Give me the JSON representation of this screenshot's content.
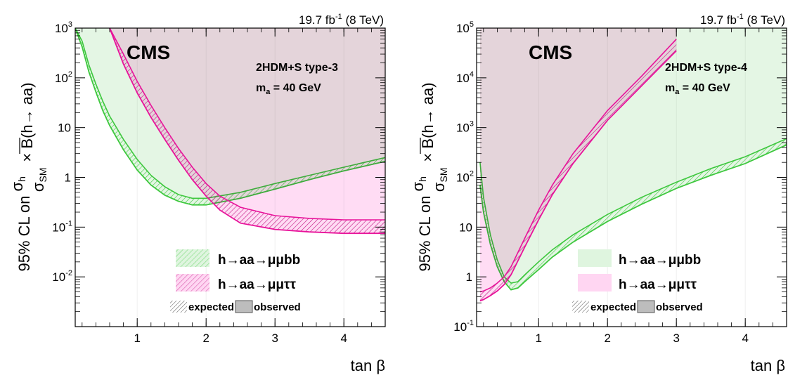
{
  "colors": {
    "green_fill": "#dff5df",
    "green_line": "#3ec83e",
    "pink_fill": "#ffd6f2",
    "pink_line": "#e8139a",
    "overlap_fill": "#e3d7d7",
    "frame": "#000000"
  },
  "legend": {
    "bb_label": "h→aa→μμbb",
    "tautau_label": "h→aa→μμττ",
    "expected_label": "expected",
    "observed_label": "observed"
  },
  "chart_data": [
    {
      "type": "area",
      "lumi_text": "19.7 fb",
      "lumi_sup": "-1",
      "lumi_energy": " (8 TeV)",
      "cms_label": "CMS",
      "model_label": "2HDM+S type-3",
      "mass_label_main": "m",
      "mass_label_sub": "a",
      "mass_label_value": " = 40 GeV",
      "ylabel_sigma_h": "σ",
      "ylabel_sigma_h_sub": "h",
      "ylabel_sigma_sm": "σ",
      "ylabel_sigma_sm_sub": "SM",
      "ylabel_prefix": "95% CL on",
      "ylabel_suffix": "× B(h→ aa)",
      "xlabel": "tan β",
      "xlim": [
        0.1,
        4.6
      ],
      "ylim": [
        0.001,
        1000
      ],
      "yscale": "log",
      "x_ticks": [
        1,
        2,
        3,
        4
      ],
      "y_ticks": [
        {
          "value": 0.01,
          "base": "10",
          "exp": "-2"
        },
        {
          "value": 0.1,
          "base": "10",
          "exp": "-1"
        },
        {
          "value": 1,
          "base": "1",
          "exp": ""
        },
        {
          "value": 10,
          "base": "10",
          "exp": ""
        },
        {
          "value": 100,
          "base": "10",
          "exp": "2"
        },
        {
          "value": 1000,
          "base": "10",
          "exp": "3"
        }
      ],
      "series": [
        {
          "name": "h→aa→μμbb",
          "x": [
            0.1,
            0.2,
            0.3,
            0.4,
            0.5,
            0.6,
            0.8,
            1.0,
            1.2,
            1.4,
            1.6,
            1.8,
            2.0,
            2.5,
            3.0,
            3.5,
            4.0,
            4.6
          ],
          "expected": [
            1000,
            550,
            180,
            75,
            34,
            17,
            5.8,
            2.3,
            1.1,
            0.65,
            0.45,
            0.38,
            0.38,
            0.5,
            0.75,
            1.1,
            1.6,
            2.5
          ],
          "observed": [
            1000,
            420,
            130,
            52,
            22,
            11,
            3.6,
            1.4,
            0.7,
            0.44,
            0.33,
            0.28,
            0.28,
            0.38,
            0.58,
            0.9,
            1.35,
            2.1
          ]
        },
        {
          "name": "h→aa→μμττ",
          "x": [
            0.6,
            0.8,
            1.0,
            1.2,
            1.4,
            1.6,
            1.8,
            2.0,
            2.2,
            2.5,
            3.0,
            3.5,
            4.0,
            4.6
          ],
          "expected": [
            1000,
            300,
            85,
            28,
            10,
            3.8,
            1.6,
            0.75,
            0.42,
            0.25,
            0.17,
            0.15,
            0.14,
            0.14
          ],
          "observed": [
            1000,
            190,
            50,
            16,
            5.8,
            2.2,
            0.9,
            0.42,
            0.22,
            0.12,
            0.09,
            0.08,
            0.075,
            0.075
          ]
        }
      ]
    },
    {
      "type": "area",
      "lumi_text": "19.7 fb",
      "lumi_sup": "-1",
      "lumi_energy": " (8 TeV)",
      "cms_label": "CMS",
      "model_label": "2HDM+S type-4",
      "mass_label_main": "m",
      "mass_label_sub": "a",
      "mass_label_value": " = 40 GeV",
      "ylabel_sigma_h": "σ",
      "ylabel_sigma_h_sub": "h",
      "ylabel_sigma_sm": "σ",
      "ylabel_sigma_sm_sub": "SM",
      "ylabel_prefix": "95% CL on",
      "ylabel_suffix": "× B(h→ aa)",
      "xlabel": "tan β",
      "xlim": [
        0.1,
        4.6
      ],
      "ylim": [
        0.1,
        100000
      ],
      "yscale": "log",
      "x_ticks": [
        1,
        2,
        3,
        4
      ],
      "y_ticks": [
        {
          "value": 0.1,
          "base": "10",
          "exp": "-1"
        },
        {
          "value": 1,
          "base": "1",
          "exp": ""
        },
        {
          "value": 10,
          "base": "10",
          "exp": ""
        },
        {
          "value": 100,
          "base": "10",
          "exp": "2"
        },
        {
          "value": 1000,
          "base": "10",
          "exp": "3"
        },
        {
          "value": 10000,
          "base": "10",
          "exp": "4"
        },
        {
          "value": 100000,
          "base": "10",
          "exp": "5"
        }
      ],
      "series": [
        {
          "name": "h→aa→μμbb",
          "x": [
            0.15,
            0.2,
            0.3,
            0.4,
            0.5,
            0.6,
            0.7,
            0.8,
            1.0,
            1.2,
            1.5,
            2.0,
            2.5,
            3.0,
            3.5,
            4.0,
            4.6
          ],
          "expected": [
            200,
            40,
            7,
            2.2,
            1.0,
            0.75,
            0.8,
            1.1,
            2.0,
            3.5,
            7,
            18,
            40,
            80,
            150,
            260,
            600
          ],
          "observed": [
            70,
            20,
            4.5,
            1.6,
            0.8,
            0.55,
            0.6,
            0.8,
            1.4,
            2.5,
            5,
            13,
            29,
            60,
            110,
            190,
            450
          ]
        },
        {
          "name": "h→aa→μμττ",
          "x": [
            0.15,
            0.2,
            0.3,
            0.4,
            0.5,
            0.6,
            0.8,
            1.0,
            1.2,
            1.5,
            2.0,
            2.5,
            3.0
          ],
          "expected": [
            0.5,
            0.52,
            0.6,
            0.75,
            1.0,
            1.6,
            6,
            22,
            70,
            300,
            2200,
            11000,
            60000
          ],
          "observed": [
            0.33,
            0.35,
            0.42,
            0.52,
            0.7,
            1.1,
            4,
            14,
            45,
            190,
            1400,
            7000,
            35000
          ]
        }
      ]
    }
  ]
}
